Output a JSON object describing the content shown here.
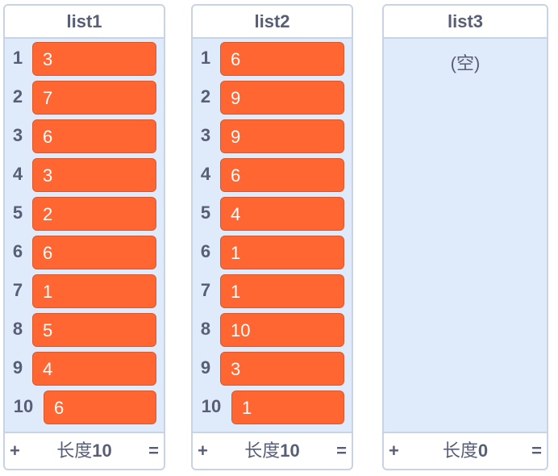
{
  "monitors": [
    {
      "title": "list1",
      "items": [
        "3",
        "7",
        "6",
        "3",
        "2",
        "6",
        "1",
        "5",
        "4",
        "6"
      ],
      "empty_label": "",
      "add_label": "+",
      "length_label": "长度",
      "length_value": "10",
      "resize_label": "="
    },
    {
      "title": "list2",
      "items": [
        "6",
        "9",
        "9",
        "6",
        "4",
        "1",
        "1",
        "10",
        "3",
        "1"
      ],
      "empty_label": "",
      "add_label": "+",
      "length_label": "长度",
      "length_value": "10",
      "resize_label": "="
    },
    {
      "title": "list3",
      "items": [],
      "empty_label": "(空)",
      "add_label": "+",
      "length_label": "长度",
      "length_value": "0",
      "resize_label": "="
    }
  ],
  "colors": {
    "item_bg": "#ff6631",
    "panel_bg": "#dfeafb",
    "text": "#575e75"
  }
}
